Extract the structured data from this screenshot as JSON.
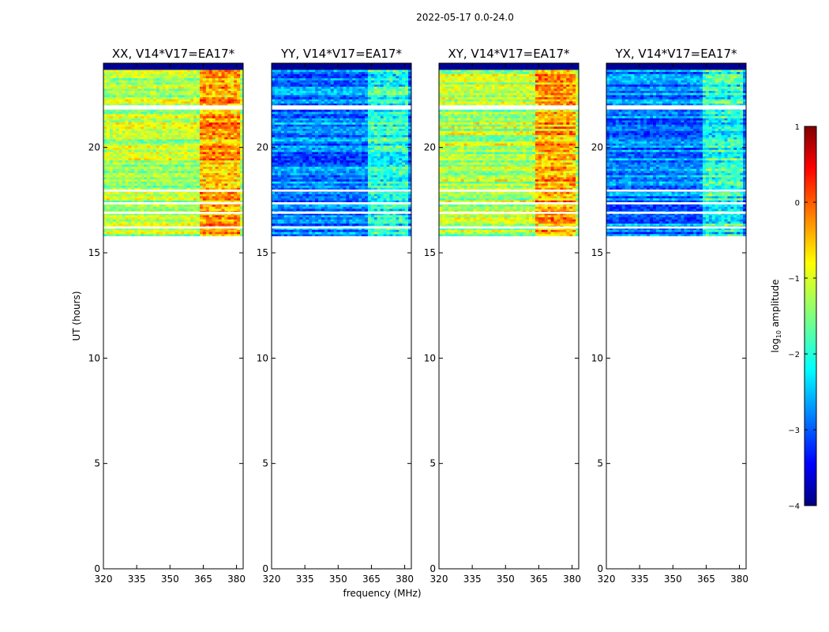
{
  "chart_data": {
    "type": "heatmap",
    "title": "2022-05-17 0.0-24.0",
    "xlabel": "frequency (MHz)",
    "ylabel": "UT (hours)",
    "xlim": [
      320,
      383
    ],
    "ylim": [
      0,
      24
    ],
    "x_ticks": [
      320,
      335,
      350,
      365,
      380
    ],
    "y_ticks": [
      0,
      5,
      10,
      15,
      20
    ],
    "data_time_range_hours": [
      15.8,
      24.0
    ],
    "blank_time_bands_hours": [
      [
        21.8,
        22.0
      ],
      [
        17.9,
        18.0
      ],
      [
        17.3,
        17.4
      ],
      [
        16.85,
        16.95
      ],
      [
        16.15,
        16.25
      ]
    ],
    "bright_frequency_band_mhz": [
      363,
      381
    ],
    "colormap": "jet",
    "panels": [
      {
        "title": "XX, V14*V17=EA17*",
        "base_intensity": 0.55
      },
      {
        "title": "YY, V14*V17=EA17*",
        "base_intensity": 0.25
      },
      {
        "title": "XY, V14*V17=EA17*",
        "base_intensity": 0.55
      },
      {
        "title": "YX, V14*V17=EA17*",
        "base_intensity": 0.25
      }
    ],
    "colorbar": {
      "label": "log10 amplitude",
      "label_main": "log",
      "label_sub": "10",
      "label_rest": " amplitude",
      "range": [
        -4,
        1
      ],
      "ticks": [
        "1",
        "0",
        "−1",
        "−2",
        "−3",
        "−4"
      ]
    }
  }
}
